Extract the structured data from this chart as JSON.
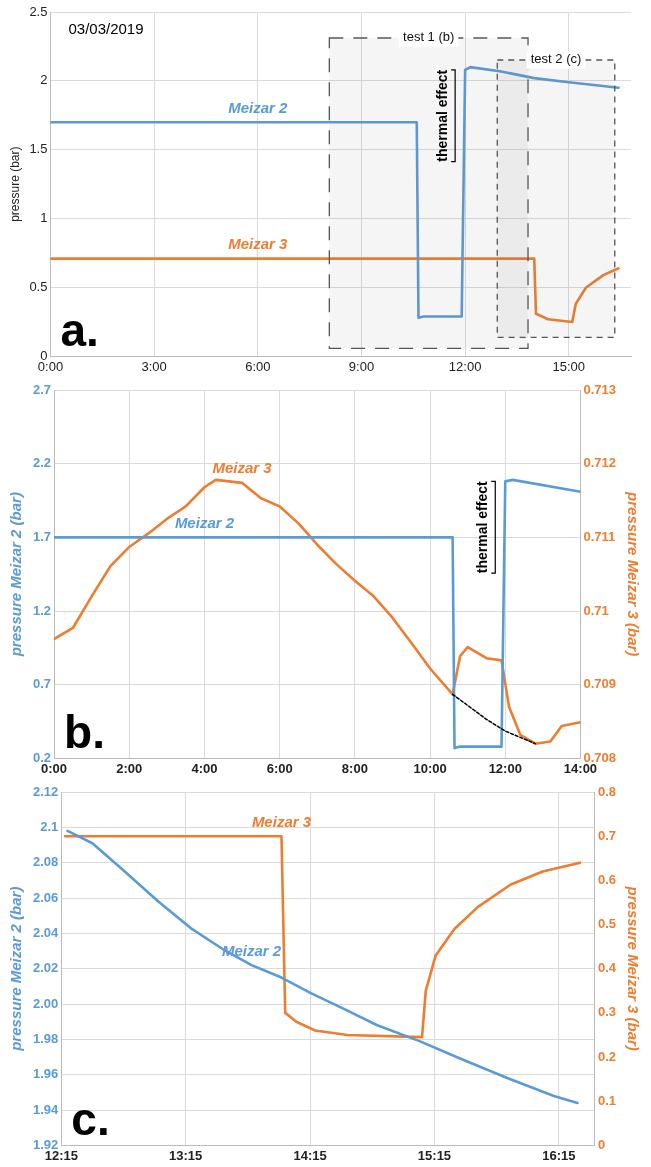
{
  "chart_data": [
    {
      "type": "line",
      "ylabel": "pressure (bar)",
      "marker": "none",
      "grid": true,
      "xlim": [
        0,
        16.8
      ],
      "xticks": [
        {
          "value": 0,
          "label": "0:00"
        },
        {
          "value": 3,
          "label": "3:00"
        },
        {
          "value": 6,
          "label": "6:00"
        },
        {
          "value": 9,
          "label": "9:00"
        },
        {
          "value": 12,
          "label": "12:00"
        },
        {
          "value": 15,
          "label": "15:00"
        }
      ],
      "ylim": [
        0,
        2.5
      ],
      "yticks": [
        0,
        0.5,
        1,
        1.5,
        2,
        2.5
      ],
      "series": [
        {
          "name": "Meizar 2",
          "color": "#5b9bd5",
          "x": [
            0,
            3,
            6,
            9,
            10.6,
            10.65,
            10.8,
            11.9,
            12.0,
            12.15,
            13,
            14,
            15,
            16.44
          ],
          "values": [
            1.7,
            1.7,
            1.7,
            1.7,
            1.7,
            0.28,
            0.29,
            0.29,
            2.08,
            2.1,
            2.07,
            2.02,
            1.99,
            1.95
          ]
        },
        {
          "name": "Meizar 3",
          "color": "#ed7d31",
          "x": [
            0,
            3,
            6,
            9,
            12,
            14.0,
            14.05,
            14.4,
            15.1,
            15.2,
            15.5,
            16,
            16.44
          ],
          "values": [
            0.71,
            0.71,
            0.71,
            0.71,
            0.71,
            0.71,
            0.31,
            0.27,
            0.25,
            0.38,
            0.5,
            0.59,
            0.64
          ]
        }
      ],
      "bands": [
        {
          "axis": "x",
          "from": 8.07,
          "to": 13.82,
          "label": "test 1 (b)"
        },
        {
          "axis": "x",
          "from": 12.93,
          "to": 16.33,
          "label": "test 2 (c)"
        }
      ],
      "annotations": [
        "a.",
        "03/03/2019",
        {
          "text": "thermal effect",
          "x": 12.0,
          "y": 2.08
        }
      ]
    },
    {
      "type": "line",
      "ylabel": "pressure Meizar 2 (bar)",
      "y2label": "pressure Meizar 3 (bar)",
      "marker": "none",
      "grid": true,
      "xlim": [
        0,
        14
      ],
      "xticks": [
        {
          "value": 0,
          "label": "0:00"
        },
        {
          "value": 2,
          "label": "2:00"
        },
        {
          "value": 4,
          "label": "4:00"
        },
        {
          "value": 6,
          "label": "6:00"
        },
        {
          "value": 8,
          "label": "8:00"
        },
        {
          "value": 10,
          "label": "10:00"
        },
        {
          "value": 12,
          "label": "12:00"
        },
        {
          "value": 14,
          "label": "14:00"
        }
      ],
      "ylim": [
        0.2,
        2.7
      ],
      "yticks": [
        0.2,
        0.7,
        1.2,
        1.7,
        2.2,
        2.7
      ],
      "y2lim": [
        0.708,
        0.713
      ],
      "y2ticks": [
        0.708,
        0.709,
        0.71,
        0.711,
        0.712,
        0.713
      ],
      "series": [
        {
          "name": "Meizar 2",
          "color": "#5b9bd5",
          "x": [
            0,
            2,
            4,
            6,
            8,
            10,
            10.6,
            10.65,
            10.8,
            11.9,
            12.0,
            12.2,
            14
          ],
          "values": [
            1.7,
            1.7,
            1.7,
            1.7,
            1.7,
            1.7,
            1.7,
            0.27,
            0.28,
            0.28,
            2.08,
            2.09,
            2.01
          ]
        },
        {
          "name": "Meizar 3",
          "color": "#ed7d31",
          "axis": "y2",
          "x": [
            0,
            0.5,
            1,
            1.5,
            2,
            2.5,
            3,
            3.5,
            4,
            4.3,
            5,
            5.5,
            6,
            6.5,
            7,
            7.5,
            8,
            8.5,
            9,
            9.5,
            10,
            10.6,
            10.8,
            11,
            11.5,
            11.9,
            12.1,
            12.4,
            12.8,
            13.2,
            13.5,
            14
          ],
          "values": [
            0.70962,
            0.70977,
            0.7102,
            0.71061,
            0.71087,
            0.71105,
            0.71125,
            0.71142,
            0.71168,
            0.71178,
            0.71174,
            0.71153,
            0.71142,
            0.71119,
            0.7109,
            0.71064,
            0.71041,
            0.7102,
            0.70991,
            0.70957,
            0.70922,
            0.70887,
            0.70939,
            0.70951,
            0.70936,
            0.70933,
            0.7087,
            0.70832,
            0.7082,
            0.70823,
            0.70844,
            0.70849
          ]
        },
        {
          "color": "#000000",
          "axis": "y2",
          "line_style": "dashed",
          "x": [
            10.6,
            11.5,
            12.0,
            12.8
          ],
          "values": [
            0.70887,
            0.70853,
            0.70837,
            0.7082
          ]
        }
      ],
      "annotations": [
        "b.",
        {
          "text": "thermal effect",
          "x": 12.0,
          "y": 2.08
        }
      ]
    },
    {
      "type": "line",
      "ylabel": "pressure Meizar 2 (bar)",
      "y2label": "pressure Meizar 3 (bar)",
      "marker": "none",
      "grid": true,
      "xlim": [
        12.25,
        16.54
      ],
      "xticks": [
        {
          "value": 12.25,
          "label": "12:15"
        },
        {
          "value": 13.25,
          "label": "13:15"
        },
        {
          "value": 14.25,
          "label": "14:15"
        },
        {
          "value": 15.25,
          "label": "15:15"
        },
        {
          "value": 16.25,
          "label": "16:15"
        }
      ],
      "ylim": [
        1.92,
        2.12
      ],
      "yticks": [
        1.92,
        1.94,
        1.96,
        1.98,
        {
          "value": 2.0,
          "label": "2.00"
        },
        2.02,
        2.04,
        2.06,
        2.08,
        2.1,
        2.12
      ],
      "y2lim": [
        0,
        0.8
      ],
      "y2ticks": [
        0,
        0.1,
        0.2,
        0.3,
        0.4,
        0.5,
        0.6,
        0.7,
        0.8
      ],
      "series": [
        {
          "name": "Meizar 2",
          "color": "#5b9bd5",
          "x": [
            12.3,
            12.5,
            12.76,
            13.03,
            13.29,
            13.55,
            13.78,
            14.02,
            14.26,
            14.53,
            14.79,
            15.13,
            15.46,
            15.84,
            16.21,
            16.4
          ],
          "values": [
            2.098,
            2.091,
            2.075,
            2.058,
            2.043,
            2.031,
            2.022,
            2.015,
            2.006,
            1.997,
            1.988,
            1.979,
            1.969,
            1.958,
            1.948,
            1.944
          ]
        },
        {
          "name": "Meizar 3",
          "color": "#ed7d31",
          "axis": "y2",
          "x": [
            12.28,
            14.02,
            14.05,
            14.14,
            14.29,
            14.55,
            15.15,
            15.18,
            15.26,
            15.41,
            15.6,
            15.86,
            16.12,
            16.42
          ],
          "values": [
            0.7,
            0.7,
            0.3,
            0.28,
            0.26,
            0.25,
            0.245,
            0.35,
            0.43,
            0.49,
            0.54,
            0.59,
            0.62,
            0.64
          ]
        }
      ],
      "annotations": [
        "c."
      ]
    }
  ]
}
